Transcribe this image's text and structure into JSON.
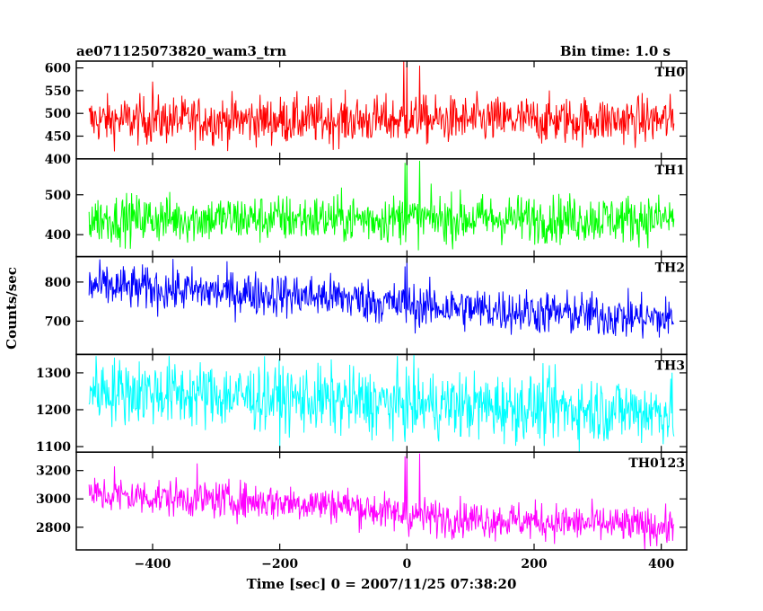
{
  "chart_data": {
    "type": "line",
    "title": "ae071125073820_wam3_trn",
    "subtitle": "Bin time: 1.0 s",
    "xlabel": "Time [sec] 0 = 2007/11/25 07:38:20",
    "ylabel": "Counts/sec",
    "xlim": [
      -520,
      440
    ],
    "x_ticks": [
      -400,
      -200,
      0,
      200,
      400
    ],
    "x_tick_labels": [
      "−400",
      "−200",
      "0",
      "200",
      "400"
    ],
    "x_range": [
      -500,
      420
    ],
    "panels": [
      {
        "name": "TH0",
        "color": "#ff0000",
        "ylim": [
          400,
          615
        ],
        "y_ticks": [
          400,
          450,
          500,
          550,
          600
        ],
        "y_tick_labels": [
          "400",
          "450",
          "500",
          "550",
          "600"
        ],
        "base": [
          [
            -500,
            485
          ],
          [
            420,
            485
          ]
        ],
        "noise": 26,
        "spikes": [
          [
            0,
            610
          ],
          [
            -5,
            615
          ],
          [
            20,
            605
          ],
          [
            -400,
            570
          ]
        ]
      },
      {
        "name": "TH1",
        "color": "#00ff00",
        "ylim": [
          345,
          590
        ],
        "y_ticks": [
          400,
          500
        ],
        "y_tick_labels": [
          "400",
          "500"
        ],
        "base": [
          [
            -500,
            440
          ],
          [
            420,
            440
          ]
        ],
        "noise": 30,
        "spikes": [
          [
            0,
            590
          ],
          [
            -3,
            580
          ],
          [
            20,
            585
          ]
        ]
      },
      {
        "name": "TH2",
        "color": "#0000ff",
        "ylim": [
          615,
          865
        ],
        "y_ticks": [
          700,
          800
        ],
        "y_tick_labels": [
          "700",
          "800"
        ],
        "base": [
          [
            -500,
            790
          ],
          [
            -100,
            760
          ],
          [
            0,
            740
          ],
          [
            420,
            705
          ]
        ],
        "noise": 28,
        "spikes": [
          [
            0,
            860
          ],
          [
            -3,
            840
          ]
        ]
      },
      {
        "name": "TH3",
        "color": "#00ffff",
        "ylim": [
          1085,
          1350
        ],
        "y_ticks": [
          1100,
          1200,
          1300
        ],
        "y_tick_labels": [
          "1100",
          "1200",
          "1300"
        ],
        "base": [
          [
            -500,
            1255
          ],
          [
            0,
            1215
          ],
          [
            420,
            1195
          ]
        ],
        "noise": 45,
        "spikes": []
      },
      {
        "name": "TH0123",
        "color": "#ff00ff",
        "ylim": [
          2640,
          3330
        ],
        "y_ticks": [
          2800,
          3000,
          3200
        ],
        "y_tick_labels": [
          "2800",
          "3000",
          "3200"
        ],
        "base": [
          [
            -500,
            3030
          ],
          [
            -100,
            2960
          ],
          [
            0,
            2880
          ],
          [
            420,
            2800
          ]
        ],
        "noise": 65,
        "spikes": [
          [
            0,
            3330
          ],
          [
            -3,
            3300
          ],
          [
            20,
            3320
          ],
          [
            -330,
            3250
          ],
          [
            -460,
            3230
          ]
        ]
      }
    ]
  }
}
